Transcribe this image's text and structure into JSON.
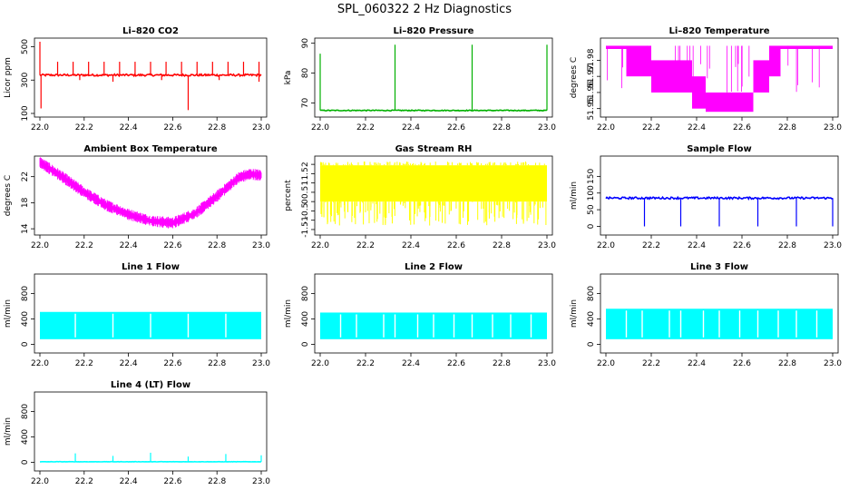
{
  "figure": {
    "title": "SPL_060322  2 Hz Diagnostics"
  },
  "chart_data": [
    {
      "id": "co2",
      "type": "line",
      "title": "Li–820 CO2",
      "ylabel": "Licor ppm",
      "color": "#ff0000",
      "xlim": [
        22.0,
        23.0
      ],
      "ylim": [
        100,
        530
      ],
      "xticks": [
        "22.0",
        "22.2",
        "22.4",
        "22.6",
        "22.8",
        "23.0"
      ],
      "yticks": [
        100,
        300,
        500
      ],
      "baseline": 330,
      "noise": 6,
      "spikes_up": [
        [
          22.0,
          530
        ],
        [
          22.08,
          410
        ],
        [
          22.15,
          410
        ],
        [
          22.22,
          410
        ],
        [
          22.29,
          410
        ],
        [
          22.36,
          410
        ],
        [
          22.43,
          410
        ],
        [
          22.5,
          410
        ],
        [
          22.57,
          410
        ],
        [
          22.64,
          410
        ],
        [
          22.71,
          410
        ],
        [
          22.78,
          410
        ],
        [
          22.85,
          410
        ],
        [
          22.92,
          410
        ],
        [
          22.99,
          410
        ]
      ],
      "spikes_down": [
        [
          22.005,
          130
        ],
        [
          22.67,
          120
        ],
        [
          22.33,
          290
        ],
        [
          22.18,
          300
        ],
        [
          22.55,
          300
        ],
        [
          22.81,
          300
        ],
        [
          22.99,
          290
        ]
      ],
      "data_labels": []
    },
    {
      "id": "pressure",
      "type": "line",
      "title": "Li–820 Pressure",
      "ylabel": "kPa",
      "color": "#00b000",
      "xlim": [
        22.0,
        23.0
      ],
      "ylim": [
        66.5,
        90.5
      ],
      "xticks": [
        "22.0",
        "22.2",
        "22.4",
        "22.6",
        "22.8",
        "23.0"
      ],
      "yticks": [
        70,
        80,
        90
      ],
      "baseline": 67.5,
      "noise": 0.15,
      "spikes_up": [
        [
          22.0,
          86.5
        ],
        [
          22.33,
          89.5
        ],
        [
          22.67,
          89.5
        ],
        [
          23.0,
          89.5
        ]
      ],
      "spikes_down": [],
      "data_labels": []
    },
    {
      "id": "licor_temp",
      "type": "band",
      "title": "Li–820 Temperature",
      "ylabel": "degrees C",
      "color": "#ff00ff",
      "xlim": [
        22.0,
        23.0
      ],
      "ylim": [
        51.947,
        51.9915
      ],
      "xticks": [
        "22.0",
        "22.2",
        "22.4",
        "22.6",
        "22.8",
        "23.0"
      ],
      "yticks": [
        51.95,
        51.96,
        51.97,
        51.98
      ],
      "segments": [
        [
          22.0,
          22.09,
          51.987,
          51.989
        ],
        [
          22.09,
          22.2,
          51.97,
          51.989
        ],
        [
          22.2,
          22.38,
          51.96,
          51.98
        ],
        [
          22.38,
          22.44,
          51.95,
          51.97
        ],
        [
          22.44,
          22.65,
          51.948,
          51.96
        ],
        [
          22.65,
          22.72,
          51.96,
          51.98
        ],
        [
          22.72,
          22.77,
          51.97,
          51.989
        ],
        [
          22.77,
          23.0,
          51.987,
          51.989
        ]
      ],
      "data_labels": []
    },
    {
      "id": "ambient_temp",
      "type": "band",
      "title": "Ambient Box Temperature",
      "ylabel": "degrees C",
      "color": "#ff00ff",
      "xlim": [
        22.0,
        23.0
      ],
      "ylim": [
        13.6,
        24.6
      ],
      "xticks": [
        "22.0",
        "22.2",
        "22.4",
        "22.6",
        "22.8",
        "23.0"
      ],
      "yticks": [
        14,
        18,
        22
      ],
      "curve": [
        [
          22.0,
          24.2
        ],
        [
          22.1,
          22.0
        ],
        [
          22.2,
          19.6
        ],
        [
          22.3,
          17.6
        ],
        [
          22.4,
          16.2
        ],
        [
          22.5,
          15.2
        ],
        [
          22.6,
          14.9
        ],
        [
          22.7,
          16.3
        ],
        [
          22.8,
          19.0
        ],
        [
          22.9,
          21.9
        ],
        [
          22.95,
          22.4
        ],
        [
          23.0,
          22.2
        ]
      ],
      "band_halfwidth": 0.6,
      "data_labels": []
    },
    {
      "id": "rh",
      "type": "band",
      "title": "Gas Stream RH",
      "ylabel": "percent",
      "color": "#ffff00",
      "xlim": [
        22.0,
        23.0
      ],
      "ylim": [
        -1.6,
        2.25
      ],
      "xticks": [
        "22.0",
        "22.2",
        "22.4",
        "22.6",
        "22.8",
        "23.0"
      ],
      "yticks": [
        -1.5,
        -1.0,
        -0.5,
        0.0,
        0.5,
        1.0,
        1.5,
        2.0
      ],
      "band_low": 0.0,
      "band_high": 1.95,
      "dips_to": -1.3,
      "data_labels": []
    },
    {
      "id": "sample_flow",
      "type": "line",
      "title": "Sample Flow",
      "ylabel": "ml/min",
      "color": "#0000ff",
      "xlim": [
        22.0,
        23.0
      ],
      "ylim": [
        -15,
        200
      ],
      "xticks": [
        "22.0",
        "22.2",
        "22.4",
        "22.6",
        "22.8",
        "23.0"
      ],
      "yticks": [
        0,
        50,
        100,
        150
      ],
      "baseline": 85,
      "noise": 3,
      "spikes_up": [],
      "spikes_down": [
        [
          22.17,
          0
        ],
        [
          22.33,
          0
        ],
        [
          22.5,
          0
        ],
        [
          22.67,
          0
        ],
        [
          22.84,
          0
        ],
        [
          23.0,
          0
        ]
      ],
      "data_labels": []
    },
    {
      "id": "line1",
      "type": "band",
      "title": "Line 1 Flow",
      "ylabel": "ml/min",
      "color": "#00ffff",
      "xlim": [
        22.0,
        23.0
      ],
      "ylim": [
        -80,
        1050
      ],
      "xticks": [
        "22.0",
        "22.2",
        "22.4",
        "22.6",
        "22.8",
        "23.0"
      ],
      "yticks": [
        0,
        400,
        800
      ],
      "band_low": 80,
      "band_high": 510,
      "gaps": [
        22.16,
        22.33,
        22.5,
        22.67,
        22.84
      ],
      "data_labels": []
    },
    {
      "id": "line2",
      "type": "band",
      "title": "Line 2 Flow",
      "ylabel": "ml/min",
      "color": "#00ffff",
      "xlim": [
        22.0,
        23.0
      ],
      "ylim": [
        -80,
        1050
      ],
      "xticks": [
        "22.0",
        "22.2",
        "22.4",
        "22.6",
        "22.8",
        "23.0"
      ],
      "yticks": [
        0,
        400,
        800
      ],
      "band_low": 80,
      "band_high": 500,
      "gaps": [
        22.09,
        22.16,
        22.28,
        22.33,
        22.43,
        22.5,
        22.59,
        22.67,
        22.76,
        22.84,
        22.93
      ],
      "data_labels": []
    },
    {
      "id": "line3",
      "type": "band",
      "title": "Line 3 Flow",
      "ylabel": "ml/min",
      "color": "#00ffff",
      "xlim": [
        22.0,
        23.0
      ],
      "ylim": [
        -80,
        1050
      ],
      "xticks": [
        "22.0",
        "22.2",
        "22.4",
        "22.6",
        "22.8",
        "23.0"
      ],
      "yticks": [
        0,
        400,
        800
      ],
      "band_low": 80,
      "band_high": 560,
      "gaps": [
        22.09,
        22.16,
        22.28,
        22.33,
        22.43,
        22.5,
        22.59,
        22.67,
        22.76,
        22.84,
        22.93
      ],
      "data_labels": []
    },
    {
      "id": "line4",
      "type": "line",
      "title": "Line 4 (LT) Flow",
      "ylabel": "ml/min",
      "color": "#00ffff",
      "xlim": [
        22.0,
        23.0
      ],
      "ylim": [
        -80,
        1050
      ],
      "xticks": [
        "22.0",
        "22.2",
        "22.4",
        "22.6",
        "22.8",
        "23.0"
      ],
      "yticks": [
        0,
        400,
        800
      ],
      "baseline": 8,
      "noise": 2,
      "spikes_up": [
        [
          22.16,
          140
        ],
        [
          22.33,
          100
        ],
        [
          22.5,
          150
        ],
        [
          22.67,
          90
        ],
        [
          22.84,
          130
        ],
        [
          23.0,
          110
        ]
      ],
      "spikes_down": [],
      "data_labels": []
    }
  ]
}
